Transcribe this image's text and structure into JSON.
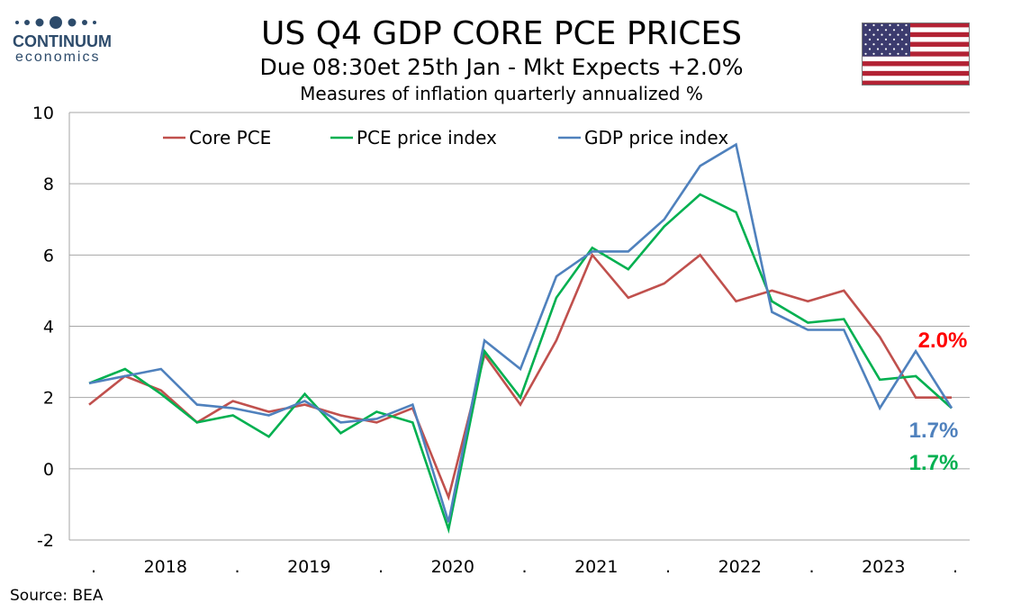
{
  "header": {
    "title": "US   Q4  GDP CORE PCE PRICES",
    "subtitle": "Due 08:30et 25th Jan  - Mkt Expects +2.0%",
    "subtitle2": "Measures of inflation quarterly annualized %"
  },
  "logo": {
    "name": "CONTINUUM",
    "sub": "economics",
    "color": "#2d4b6b"
  },
  "flag": {
    "country": "United States",
    "red": "#b22234",
    "blue": "#3c3b6e"
  },
  "source": "Source: BEA",
  "chart_data": {
    "type": "line",
    "title": "",
    "ylim": [
      -2,
      10
    ],
    "yticks": [
      -2,
      0,
      2,
      4,
      6,
      8,
      10
    ],
    "grid": true,
    "legend_placement": "top",
    "x_tick_labels": [
      ".",
      "2018",
      ".",
      "2019",
      ".",
      "2020",
      ".",
      "2021",
      ".",
      "2022",
      ".",
      "2023",
      "."
    ],
    "series": [
      {
        "name": "Core PCE",
        "color": "#c0504d",
        "values": [
          1.8,
          2.6,
          2.2,
          1.3,
          1.9,
          1.6,
          1.8,
          1.5,
          1.3,
          1.7,
          -0.8,
          3.2,
          1.8,
          3.6,
          6.0,
          4.8,
          5.2,
          6.0,
          4.7,
          5.0,
          4.7,
          5.0,
          3.7,
          2.0,
          2.0
        ]
      },
      {
        "name": "PCE price index",
        "color": "#00b050",
        "values": [
          2.4,
          2.8,
          2.1,
          1.3,
          1.5,
          0.9,
          2.1,
          1.0,
          1.6,
          1.3,
          -1.7,
          3.3,
          2.0,
          4.8,
          6.2,
          5.6,
          6.8,
          7.7,
          7.2,
          4.7,
          4.1,
          4.2,
          2.5,
          2.6,
          1.7
        ]
      },
      {
        "name": "GDP price index",
        "color": "#4f81bd",
        "values": [
          2.4,
          2.6,
          2.8,
          1.8,
          1.7,
          1.5,
          1.9,
          1.3,
          1.4,
          1.8,
          -1.5,
          3.6,
          2.8,
          5.4,
          6.1,
          6.1,
          7.0,
          8.5,
          9.1,
          4.4,
          3.9,
          3.9,
          1.7,
          3.3,
          1.7
        ]
      }
    ],
    "annotations": [
      {
        "text": "2.0%",
        "color": "#ff0000",
        "series": "Core PCE"
      },
      {
        "text": "1.7%",
        "color": "#4f81bd",
        "series": "GDP price index"
      },
      {
        "text": "1.7%",
        "color": "#00b050",
        "series": "PCE price index"
      }
    ]
  }
}
